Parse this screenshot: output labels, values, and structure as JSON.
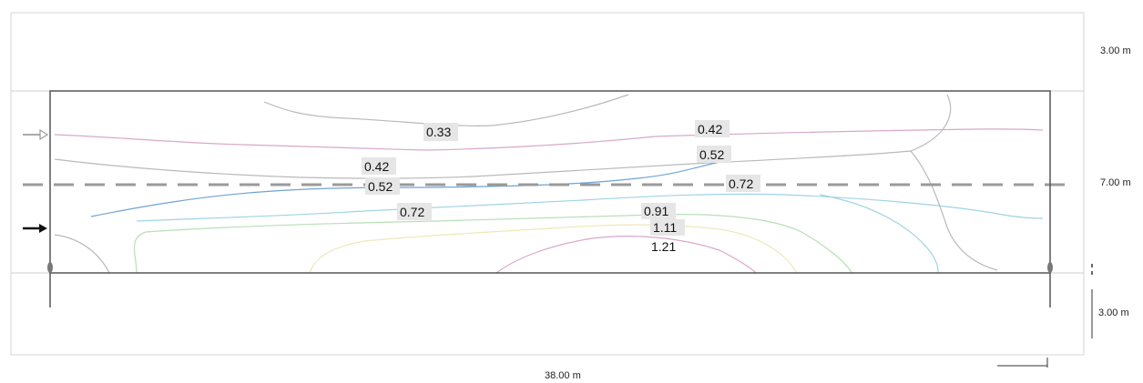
{
  "dimensions": {
    "top_height": "3.00 m",
    "middle_height": "7.00 m",
    "bottom_height": "3.00 m",
    "width": "38.00 m"
  },
  "contour_labels": [
    "0.33",
    "0.42",
    "0.52",
    "0.42",
    "0.52",
    "0.72",
    "0.72",
    "0.91",
    "1.11",
    "1.21"
  ],
  "colors": {
    "frame": "#555555",
    "dashed_line": "#9a9a9a",
    "contour_gray": "#b9b9b9",
    "contour_blue": "#6fa3d6",
    "contour_cyan": "#9fd3e3",
    "contour_green": "#b7dfb7",
    "contour_pink": "#d9a7c9",
    "contour_yellow": "#ece9b8",
    "label_bg": "#e6e6e6"
  }
}
